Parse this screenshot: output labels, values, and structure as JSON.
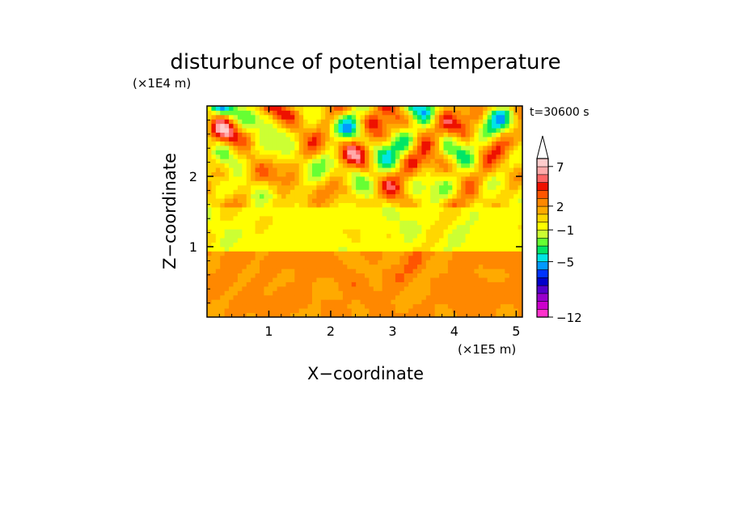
{
  "chart_data": {
    "type": "heatmap",
    "title": "disturbunce of potential temperature",
    "time_label": "t=30600 s",
    "xlabel": "X−coordinate",
    "ylabel": "Z−coordinate",
    "x_unit": "(×1E5 m)",
    "y_unit": "(×1E4 m)",
    "xlim": [
      0,
      5.1
    ],
    "ylim": [
      0,
      3.0
    ],
    "x_ticks": [
      1,
      2,
      3,
      4,
      5
    ],
    "x_tick_labels": [
      "1",
      "2",
      "3",
      "4",
      "5"
    ],
    "y_ticks": [
      1,
      2
    ],
    "y_tick_labels": [
      "1",
      "2"
    ],
    "colorbar": {
      "levels": [
        -12,
        -11,
        -10,
        -9,
        -8,
        -7,
        -6,
        -5,
        -4,
        -3,
        -2,
        -1,
        0,
        1,
        2,
        3,
        4,
        5,
        6,
        7,
        8,
        9,
        10
      ],
      "colors": [
        "#ff33cc",
        "#cc00cc",
        "#9900cc",
        "#5500cc",
        "#0000cc",
        "#0033ff",
        "#0099ff",
        "#00e5e5",
        "#00e566",
        "#66ff33",
        "#ccff33",
        "#ffff00",
        "#ffd700",
        "#ffaa00",
        "#ff8800",
        "#ff5500",
        "#ee1100",
        "#ff6666",
        "#ffaaaa",
        "#ffcccc"
      ],
      "labeled_values": [
        7,
        2,
        -1,
        -5,
        -12
      ],
      "labels": [
        "7",
        "2",
        "−1",
        "−5",
        "−12"
      ],
      "extend": "max"
    },
    "field_description": {
      "nx": 72,
      "nz": 48,
      "value_range": [
        -8,
        9
      ]
    }
  }
}
